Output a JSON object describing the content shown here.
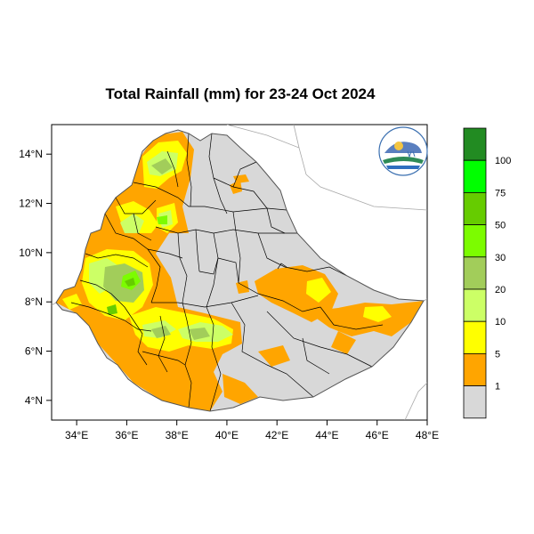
{
  "title": "Total Rainfall (mm) for 23-24 Oct 2024",
  "map": {
    "lon_range": [
      33,
      48
    ],
    "lat_range": [
      3.2,
      15.2
    ],
    "x_ticks": [
      "34°E",
      "36°E",
      "38°E",
      "40°E",
      "42°E",
      "44°E",
      "46°E",
      "48°E"
    ],
    "y_ticks": [
      "14°N",
      "12°N",
      "10°N",
      "8°N",
      "6°N",
      "4°N"
    ],
    "country_fill": "#d8d8d8",
    "logo": "ethiopia-meteorology-institute-logo"
  },
  "legend": {
    "labels": [
      "100",
      "75",
      "50",
      "30",
      "20",
      "10",
      "5",
      "1"
    ],
    "colors": [
      "#228b22",
      "#00ff00",
      "#66cc00",
      "#7cfc00",
      "#a2cd5a",
      "#ccff66",
      "#ffff00",
      "#ffa500",
      "#d8d8d8"
    ]
  },
  "rain_colors": {
    "r1": "#ffa500",
    "r5": "#ffff00",
    "r10": "#ccff66",
    "r20": "#a2cd5a",
    "r30": "#7cfc00",
    "r50": "#66cc00"
  }
}
